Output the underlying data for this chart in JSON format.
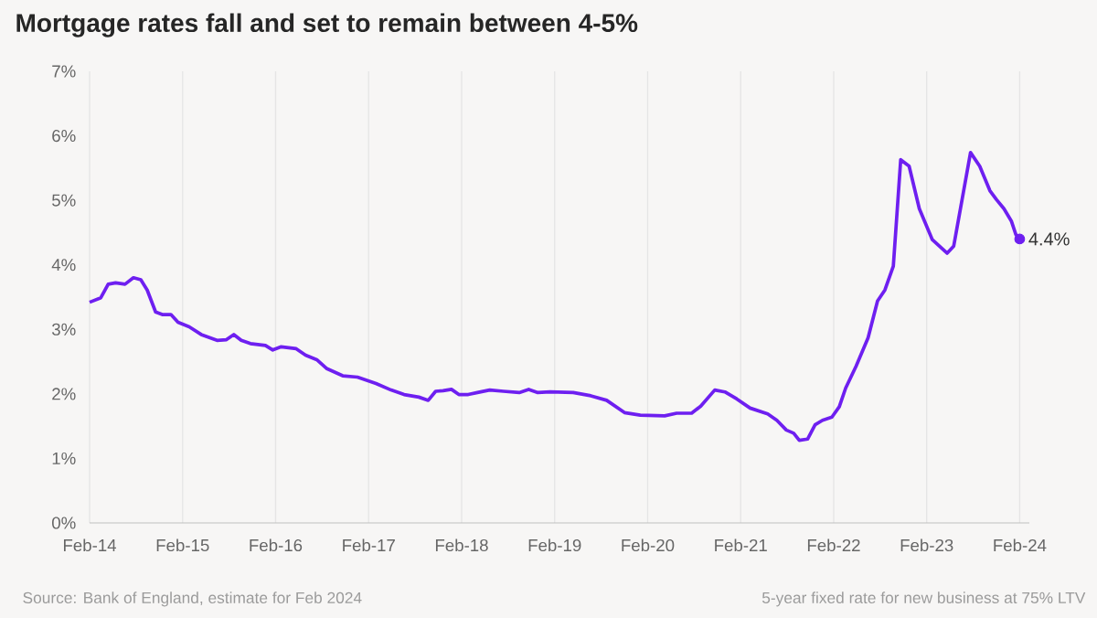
{
  "chart_data": {
    "type": "line",
    "title": "Mortgage rates fall and set to remain between 4-5%",
    "annotations": [
      {
        "text": "4.4%",
        "x": "2024-02-01",
        "y": 4.4
      },
      "Source: Bank of England, estimate for Feb 2024",
      "5-year fixed rate for new business at 75% LTV"
    ],
    "x": [
      "2014-02-01",
      "2014-03-17",
      "2014-04-15",
      "2014-05-14",
      "2014-06-20",
      "2014-07-23",
      "2014-08-21",
      "2014-09-15",
      "2014-10-18",
      "2014-11-13",
      "2014-12-17",
      "2015-01-14",
      "2015-02-27",
      "2015-04-15",
      "2015-06-16",
      "2015-07-23",
      "2015-08-21",
      "2015-09-19",
      "2015-10-25",
      "2015-12-23",
      "2016-01-21",
      "2016-02-23",
      "2016-04-22",
      "2016-05-29",
      "2016-07-12",
      "2016-08-21",
      "2016-10-22",
      "2016-12-19",
      "2017-03-02",
      "2017-04-30",
      "2017-06-20",
      "2017-08-17",
      "2017-09-23",
      "2017-10-22",
      "2017-11-20",
      "2017-12-23",
      "2018-01-21",
      "2018-02-27",
      "2018-04-04",
      "2018-05-22",
      "2018-07-15",
      "2018-09-15",
      "2018-10-22",
      "2018-11-27",
      "2019-01-14",
      "2019-04-15",
      "2019-06-23",
      "2019-08-24",
      "2019-11-02",
      "2020-01-03",
      "2020-04-08",
      "2020-05-25",
      "2020-07-23",
      "2020-08-28",
      "2020-10-22",
      "2020-12-01",
      "2021-01-17",
      "2021-03-10",
      "2021-05-18",
      "2021-06-23",
      "2021-07-30",
      "2021-08-28",
      "2021-09-19",
      "2021-10-22",
      "2021-11-20",
      "2021-12-19",
      "2022-01-25",
      "2022-02-23",
      "2022-03-20",
      "2022-04-30",
      "2022-06-16",
      "2022-07-23",
      "2022-08-21",
      "2022-09-23",
      "2022-10-22",
      "2022-11-24",
      "2023-01-03",
      "2023-02-23",
      "2023-04-22",
      "2023-05-18",
      "2023-07-23",
      "2023-08-28",
      "2023-10-07",
      "2023-11-02",
      "2023-12-01",
      "2023-12-30",
      "2024-01-17",
      "2024-02-01"
    ],
    "series": [
      {
        "color": "#6e1ff0",
        "values": [
          3.42,
          3.49,
          3.7,
          3.72,
          3.7,
          3.8,
          3.77,
          3.61,
          3.27,
          3.23,
          3.23,
          3.11,
          3.04,
          2.92,
          2.83,
          2.84,
          2.92,
          2.83,
          2.78,
          2.75,
          2.68,
          2.73,
          2.7,
          2.6,
          2.53,
          2.39,
          2.28,
          2.26,
          2.16,
          2.06,
          1.99,
          1.95,
          1.9,
          2.04,
          2.05,
          2.07,
          1.99,
          1.99,
          2.02,
          2.06,
          2.04,
          2.02,
          2.07,
          2.02,
          2.03,
          2.02,
          1.97,
          1.9,
          1.71,
          1.67,
          1.66,
          1.7,
          1.7,
          1.81,
          2.06,
          2.03,
          1.92,
          1.78,
          1.69,
          1.59,
          1.44,
          1.39,
          1.28,
          1.3,
          1.52,
          1.59,
          1.64,
          1.8,
          2.09,
          2.43,
          2.87,
          3.44,
          3.61,
          3.98,
          5.63,
          5.53,
          4.87,
          4.39,
          4.18,
          4.29,
          5.74,
          5.53,
          5.15,
          5.01,
          4.87,
          4.68,
          4.47,
          4.4
        ]
      }
    ],
    "xlim": [
      "2014-02-01",
      "2024-03-10"
    ],
    "xticks": [
      {
        "value": "2014-02",
        "label": "Feb-14"
      },
      {
        "value": "2015-02",
        "label": "Feb-15"
      },
      {
        "value": "2016-02",
        "label": "Feb-16"
      },
      {
        "value": "2017-02",
        "label": "Feb-17"
      },
      {
        "value": "2018-02",
        "label": "Feb-18"
      },
      {
        "value": "2019-02",
        "label": "Feb-19"
      },
      {
        "value": "2020-02",
        "label": "Feb-20"
      },
      {
        "value": "2021-02",
        "label": "Feb-21"
      },
      {
        "value": "2022-02",
        "label": "Feb-22"
      },
      {
        "value": "2023-02",
        "label": "Feb-23"
      },
      {
        "value": "2024-02",
        "label": "Feb-24"
      }
    ],
    "ylim": [
      0,
      7
    ],
    "yticks": [
      {
        "value": 0,
        "label": "0%"
      },
      {
        "value": 1,
        "label": "1%"
      },
      {
        "value": 2,
        "label": "2%"
      },
      {
        "value": 3,
        "label": "3%"
      },
      {
        "value": 4,
        "label": "4%"
      },
      {
        "value": 5,
        "label": "5%"
      },
      {
        "value": 6,
        "label": "6%"
      },
      {
        "value": 7,
        "label": "7%"
      }
    ],
    "grid": "x"
  }
}
